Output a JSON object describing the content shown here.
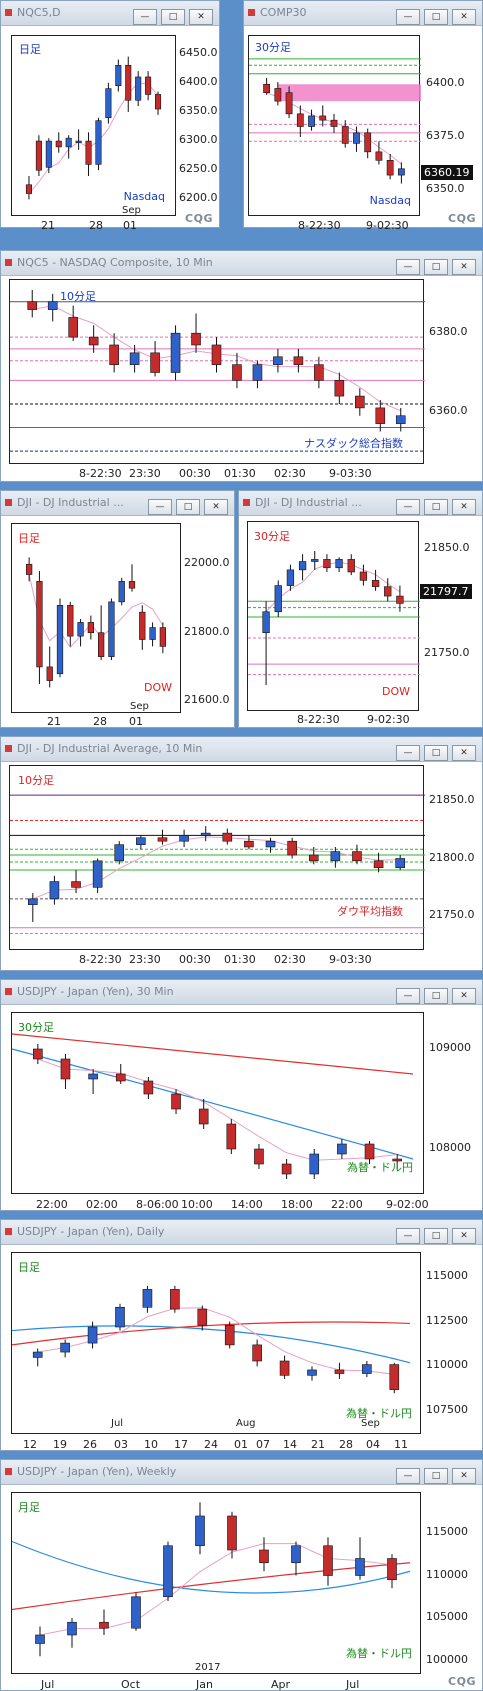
{
  "colors": {
    "up": "#2f62c9",
    "down": "#c42c2c",
    "pink": "#e06fbf",
    "green": "#2bb52b",
    "red": "#e03030",
    "blue": "#2a8be3"
  },
  "panels": {
    "nqc5_daily": {
      "title": "NQC5,D",
      "period_label": "日足",
      "name_label": "Nasdaq",
      "price_ticks": [
        "6450.0",
        "6400.0",
        "6350.0",
        "6300.0",
        "6250.0",
        "6200.0"
      ],
      "x_ticks": [
        "21",
        "28",
        "01"
      ],
      "x_sub": "Sep"
    },
    "comp30": {
      "title": "COMP30",
      "period_label": "30分足",
      "name_label": "Nasdaq",
      "price_ticks": [
        "6400.0",
        "6375.0",
        "6350.0"
      ],
      "last_price": "6360.19",
      "x_ticks": [
        "8-22:30",
        "9-02:30"
      ]
    },
    "nqc5_10m": {
      "title": "NQC5 - NASDAQ Composite, 10 Min",
      "period_label": "10分足",
      "name_label": "ナスダック総合指数",
      "price_ticks": [
        "6380.0",
        "6360.0"
      ],
      "x_ticks": [
        "8-22:30",
        "23:30",
        "00:30",
        "01:30",
        "02:30",
        "9-03:30"
      ]
    },
    "dji_daily": {
      "title": "DJI - DJ Industrial ...",
      "period_label": "日足",
      "name_label": "DOW",
      "price_ticks": [
        "22000.0",
        "21800.0",
        "21600.0"
      ],
      "x_ticks": [
        "21",
        "28",
        "01"
      ],
      "x_sub": "Sep"
    },
    "dji_30m": {
      "title": "DJI - DJ Industrial ...",
      "period_label": "30分足",
      "name_label": "DOW",
      "price_ticks": [
        "21850.0",
        "21750.0"
      ],
      "last_price": "21797.7",
      "x_ticks": [
        "8-22:30",
        "9-02:30"
      ]
    },
    "dji_10m": {
      "title": "DJI - DJ Industrial Average, 10 Min",
      "period_label": "10分足",
      "name_label": "ダウ平均指数",
      "price_ticks": [
        "21850.0",
        "21800.0",
        "21750.0"
      ],
      "x_ticks": [
        "8-22:30",
        "23:30",
        "00:30",
        "01:30",
        "02:30",
        "9-03:30"
      ]
    },
    "usdjpy_30m": {
      "title": "USDJPY - Japan (Yen), 30 Min",
      "period_label": "30分足",
      "name_label": "為替・ドル円",
      "price_ticks": [
        "109000",
        "108000"
      ],
      "x_ticks": [
        "22:00",
        "02:00",
        "8-06:00",
        "10:00",
        "14:00",
        "18:00",
        "22:00",
        "9-02:00"
      ]
    },
    "usdjpy_daily": {
      "title": "USDJPY - Japan (Yen), Daily",
      "period_label": "日足",
      "name_label": "為替・ドル円",
      "price_ticks": [
        "115000",
        "112500",
        "110000",
        "107500"
      ],
      "x_ticks": [
        "12",
        "19",
        "26",
        "03",
        "10",
        "17",
        "24",
        "01",
        "07",
        "14",
        "21",
        "28",
        "04",
        "11"
      ],
      "x_months": [
        "Jul",
        "Aug",
        "Sep"
      ]
    },
    "usdjpy_weekly": {
      "title": "USDJPY - Japan (Yen), Weekly",
      "period_label": "月足",
      "name_label": "為替・ドル円",
      "price_ticks": [
        "115000",
        "110000",
        "105000",
        "100000"
      ],
      "x_ticks": [
        "Jul",
        "Oct",
        "Jan",
        "Apr",
        "Jul"
      ],
      "x_year": "2017"
    }
  },
  "brand": "CQG",
  "chart_data": [
    {
      "type": "candlestick",
      "panel": "nqc5_daily",
      "ylim": [
        6180,
        6470
      ],
      "ohlc": [
        [
          6225,
          6240,
          6200,
          6210
        ],
        [
          6300,
          6310,
          6240,
          6250
        ],
        [
          6255,
          6305,
          6245,
          6300
        ],
        [
          6300,
          6315,
          6280,
          6290
        ],
        [
          6290,
          6310,
          6270,
          6305
        ],
        [
          6300,
          6320,
          6285,
          6300
        ],
        [
          6300,
          6315,
          6240,
          6260
        ],
        [
          6260,
          6340,
          6250,
          6335
        ],
        [
          6340,
          6400,
          6330,
          6390
        ],
        [
          6395,
          6440,
          6385,
          6430
        ],
        [
          6430,
          6445,
          6350,
          6370
        ],
        [
          6370,
          6420,
          6360,
          6410
        ],
        [
          6410,
          6420,
          6370,
          6380
        ],
        [
          6380,
          6385,
          6345,
          6355
        ]
      ]
    },
    {
      "type": "candlestick",
      "panel": "comp30",
      "ylim": [
        6340,
        6420
      ],
      "ohlc": [
        [
          6400,
          6403,
          6395,
          6396
        ],
        [
          6398,
          6401,
          6390,
          6392
        ],
        [
          6396,
          6399,
          6384,
          6386
        ],
        [
          6386,
          6390,
          6375,
          6380
        ],
        [
          6380,
          6388,
          6378,
          6385
        ],
        [
          6385,
          6390,
          6380,
          6383
        ],
        [
          6383,
          6386,
          6377,
          6380
        ],
        [
          6380,
          6383,
          6370,
          6372
        ],
        [
          6372,
          6380,
          6368,
          6377
        ],
        [
          6377,
          6379,
          6365,
          6368
        ],
        [
          6368,
          6373,
          6362,
          6364
        ],
        [
          6364,
          6367,
          6355,
          6357
        ],
        [
          6357,
          6363,
          6353,
          6360
        ]
      ]
    },
    {
      "type": "candlestick",
      "panel": "nqc5_10m",
      "ylim": [
        6348,
        6392
      ],
      "ohlc": [
        [
          6388,
          6391,
          6384,
          6386
        ],
        [
          6386,
          6390,
          6383,
          6388
        ],
        [
          6384,
          6387,
          6378,
          6379
        ],
        [
          6379,
          6382,
          6375,
          6377
        ],
        [
          6377,
          6380,
          6370,
          6372
        ],
        [
          6372,
          6377,
          6370,
          6375
        ],
        [
          6375,
          6378,
          6369,
          6370
        ],
        [
          6370,
          6382,
          6368,
          6380
        ],
        [
          6380,
          6385,
          6375,
          6377
        ],
        [
          6377,
          6379,
          6370,
          6372
        ],
        [
          6372,
          6375,
          6366,
          6368
        ],
        [
          6368,
          6373,
          6366,
          6372
        ],
        [
          6372,
          6376,
          6370,
          6374
        ],
        [
          6374,
          6376,
          6370,
          6372
        ],
        [
          6372,
          6374,
          6366,
          6368
        ],
        [
          6368,
          6370,
          6362,
          6364
        ],
        [
          6364,
          6366,
          6359,
          6361
        ],
        [
          6361,
          6363,
          6355,
          6357
        ],
        [
          6357,
          6361,
          6355,
          6359
        ]
      ]
    },
    {
      "type": "candlestick",
      "panel": "dji_daily",
      "ylim": [
        21580,
        22100
      ],
      "ohlc": [
        [
          22000,
          22020,
          21950,
          21970
        ],
        [
          21950,
          21980,
          21650,
          21700
        ],
        [
          21700,
          21760,
          21640,
          21660
        ],
        [
          21680,
          21900,
          21670,
          21880
        ],
        [
          21880,
          21890,
          21760,
          21790
        ],
        [
          21790,
          21840,
          21760,
          21830
        ],
        [
          21830,
          21850,
          21780,
          21800
        ],
        [
          21800,
          21880,
          21720,
          21730
        ],
        [
          21730,
          21900,
          21720,
          21890
        ],
        [
          21890,
          21960,
          21880,
          21950
        ],
        [
          21950,
          22000,
          21920,
          21930
        ],
        [
          21860,
          21880,
          21750,
          21780
        ],
        [
          21780,
          21830,
          21760,
          21815
        ],
        [
          21815,
          21830,
          21740,
          21760
        ]
      ]
    },
    {
      "type": "candlestick",
      "panel": "dji_30m",
      "ylim": [
        21700,
        21870
      ],
      "ohlc": [
        [
          21770,
          21800,
          21720,
          21790
        ],
        [
          21790,
          21820,
          21785,
          21815
        ],
        [
          21815,
          21835,
          21810,
          21830
        ],
        [
          21830,
          21845,
          21820,
          21838
        ],
        [
          21838,
          21848,
          21830,
          21840
        ],
        [
          21840,
          21845,
          21828,
          21832
        ],
        [
          21832,
          21842,
          21828,
          21840
        ],
        [
          21840,
          21845,
          21825,
          21828
        ],
        [
          21828,
          21835,
          21815,
          21820
        ],
        [
          21820,
          21830,
          21810,
          21814
        ],
        [
          21814,
          21822,
          21800,
          21805
        ],
        [
          21805,
          21815,
          21790,
          21798
        ]
      ]
    },
    {
      "type": "candlestick",
      "panel": "dji_10m",
      "ylim": [
        21725,
        21875
      ],
      "ohlc": [
        [
          21760,
          21770,
          21745,
          21765
        ],
        [
          21765,
          21785,
          21760,
          21780
        ],
        [
          21780,
          21790,
          21770,
          21775
        ],
        [
          21775,
          21800,
          21770,
          21798
        ],
        [
          21798,
          21815,
          21795,
          21812
        ],
        [
          21812,
          21820,
          21808,
          21818
        ],
        [
          21818,
          21825,
          21812,
          21815
        ],
        [
          21815,
          21825,
          21810,
          21820
        ],
        [
          21820,
          21828,
          21815,
          21822
        ],
        [
          21822,
          21826,
          21812,
          21815
        ],
        [
          21815,
          21820,
          21808,
          21810
        ],
        [
          21810,
          21818,
          21805,
          21815
        ],
        [
          21815,
          21818,
          21800,
          21803
        ],
        [
          21803,
          21810,
          21795,
          21798
        ],
        [
          21798,
          21810,
          21792,
          21806
        ],
        [
          21806,
          21812,
          21795,
          21798
        ],
        [
          21798,
          21805,
          21788,
          21792
        ],
        [
          21792,
          21803,
          21790,
          21800
        ]
      ]
    },
    {
      "type": "candlestick",
      "panel": "usdjpy_30m",
      "ylim": [
        107600,
        109300
      ],
      "ohlc": [
        [
          109000,
          109050,
          108850,
          108900
        ],
        [
          108900,
          108950,
          108600,
          108700
        ],
        [
          108700,
          108800,
          108550,
          108750
        ],
        [
          108750,
          108850,
          108650,
          108680
        ],
        [
          108680,
          108720,
          108500,
          108550
        ],
        [
          108550,
          108600,
          108350,
          108400
        ],
        [
          108400,
          108500,
          108200,
          108250
        ],
        [
          108250,
          108300,
          107950,
          108000
        ],
        [
          108000,
          108050,
          107800,
          107850
        ],
        [
          107850,
          107900,
          107700,
          107750
        ],
        [
          107750,
          108000,
          107700,
          107950
        ],
        [
          107950,
          108100,
          107900,
          108050
        ],
        [
          108050,
          108080,
          107850,
          107900
        ],
        [
          107900,
          107950,
          107800,
          107880
        ]
      ]
    },
    {
      "type": "candlestick",
      "panel": "usdjpy_daily",
      "ylim": [
        106500,
        116000
      ],
      "ohlc": [
        [
          110500,
          111000,
          110000,
          110800
        ],
        [
          110800,
          111500,
          110500,
          111300
        ],
        [
          111300,
          112500,
          111000,
          112200
        ],
        [
          112200,
          113500,
          112000,
          113300
        ],
        [
          113300,
          114500,
          113000,
          114300
        ],
        [
          114300,
          114500,
          113000,
          113200
        ],
        [
          113200,
          113400,
          112000,
          112300
        ],
        [
          112300,
          112500,
          111000,
          111200
        ],
        [
          111200,
          111500,
          110000,
          110300
        ],
        [
          110300,
          110600,
          109300,
          109500
        ],
        [
          109500,
          110000,
          109200,
          109800
        ],
        [
          109800,
          110200,
          109300,
          109600
        ],
        [
          109600,
          110300,
          109400,
          110100
        ],
        [
          110100,
          110200,
          108500,
          108700
        ]
      ]
    },
    {
      "type": "candlestick",
      "panel": "usdjpy_weekly",
      "ylim": [
        99000,
        119000
      ],
      "ohlc": [
        [
          102000,
          104000,
          100500,
          103000
        ],
        [
          103000,
          105000,
          101500,
          104500
        ],
        [
          104500,
          106000,
          103000,
          103800
        ],
        [
          103800,
          108000,
          103500,
          107500
        ],
        [
          107500,
          114000,
          107000,
          113500
        ],
        [
          113500,
          118600,
          112500,
          117000
        ],
        [
          117000,
          117500,
          112000,
          113000
        ],
        [
          113000,
          114500,
          110500,
          111500
        ],
        [
          111500,
          114000,
          110000,
          113500
        ],
        [
          113500,
          114500,
          108800,
          110000
        ],
        [
          110000,
          114500,
          109500,
          112000
        ],
        [
          112000,
          112500,
          108500,
          109500
        ]
      ]
    }
  ]
}
